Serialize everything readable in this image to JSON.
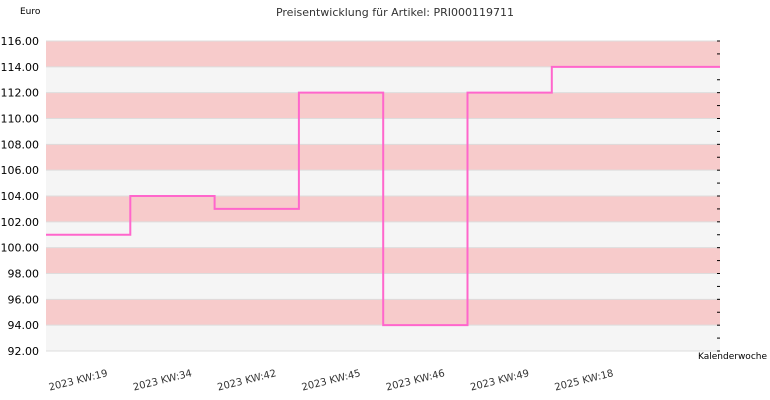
{
  "chart_data": {
    "type": "line",
    "step": true,
    "title": "Preisentwicklung für Artikel: PRI000119711",
    "ylabel": "Euro",
    "xlabel": "Kalenderwoche",
    "ylim": [
      92,
      116
    ],
    "ytick_step": 2,
    "ytick_labels": [
      "92.00",
      "94.00",
      "96.00",
      "98.00",
      "100.00",
      "102.00",
      "104.00",
      "106.00",
      "108.00",
      "110.00",
      "112.00",
      "114.00",
      "116.00"
    ],
    "categories": [
      "2023 KW:19",
      "2023 KW:34",
      "2023 KW:42",
      "2023 KW:45",
      "2023 KW:46",
      "2023 KW:49",
      "2025 KW:18"
    ],
    "values": [
      101,
      104,
      103,
      112,
      94,
      112,
      114
    ],
    "grid": true,
    "colors": {
      "line": "#ff66cc",
      "band_pink": "#f7cbcb",
      "band_gray": "#f5f5f5",
      "background": "#ffffff",
      "axis": "#000000"
    }
  }
}
